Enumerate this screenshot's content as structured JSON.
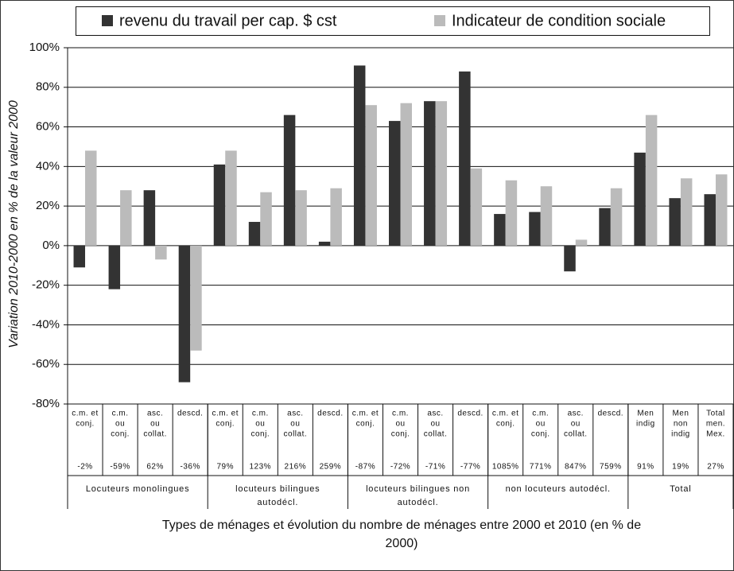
{
  "chart_data": {
    "type": "bar",
    "legend_position": "top",
    "y_axis_label": "Variation 2010-2000 en % de la valeur 2000",
    "x_axis_label": [
      "Types de ménages et évolution du nombre de ménages entre 2000 et 2010 (en % de",
      "2000)"
    ],
    "categories": [
      [
        "c.m. et",
        "conj."
      ],
      [
        "c.m.",
        "ou",
        "conj."
      ],
      [
        "asc.",
        "ou",
        "collat."
      ],
      [
        "descd."
      ],
      [
        "c.m. et",
        "conj."
      ],
      [
        "c.m.",
        "ou",
        "conj."
      ],
      [
        "asc.",
        "ou",
        "collat."
      ],
      [
        "descd."
      ],
      [
        "c.m. et",
        "conj."
      ],
      [
        "c.m.",
        "ou",
        "conj."
      ],
      [
        "asc.",
        "ou",
        "collat."
      ],
      [
        "descd."
      ],
      [
        "c.m. et",
        "conj."
      ],
      [
        "c.m.",
        "ou",
        "conj."
      ],
      [
        "asc.",
        "ou",
        "collat."
      ],
      [
        "descd."
      ],
      [
        "Men",
        "indig"
      ],
      [
        "Men",
        "non",
        "indig"
      ],
      [
        "Total",
        "men.",
        "Mex."
      ]
    ],
    "growth_labels": [
      "-2%",
      "-59%",
      "62%",
      "-36%",
      "79%",
      "123%",
      "216%",
      "259%",
      "-87%",
      "-72%",
      "-71%",
      "-77%",
      "1085%",
      "771%",
      "847%",
      "759%",
      "91%",
      "19%",
      "27%"
    ],
    "groups": [
      {
        "name": [
          "Locuteurs monolingues"
        ],
        "count": 4
      },
      {
        "name": [
          "locuteurs bilingues",
          "autodécl."
        ],
        "count": 4
      },
      {
        "name": [
          "locuteurs bilingues non",
          "autodécl."
        ],
        "count": 4
      },
      {
        "name": [
          "non locuteurs autodécl."
        ],
        "count": 4
      },
      {
        "name": [
          "Total"
        ],
        "count": 3
      }
    ],
    "series": [
      {
        "name": "revenu du travail per cap. $ cst",
        "color": "#333333",
        "values": [
          -11,
          -22,
          28,
          -69,
          41,
          12,
          66,
          2,
          91,
          63,
          73,
          88,
          16,
          17,
          -13,
          19,
          47,
          24,
          26
        ]
      },
      {
        "name": "Indicateur de condition sociale",
        "color": "#bbbbbb",
        "values": [
          48,
          28,
          -7,
          -53,
          48,
          27,
          28,
          29,
          71,
          72,
          73,
          39,
          33,
          30,
          3,
          29,
          66,
          34,
          36
        ]
      }
    ],
    "ylim": [
      -80,
      100
    ],
    "yticks": [
      {
        "value": -80,
        "label": "-80%"
      },
      {
        "value": -60,
        "label": "-60%"
      },
      {
        "value": -40,
        "label": "-40%"
      },
      {
        "value": -20,
        "label": "-20%"
      },
      {
        "value": 0,
        "label": "0%"
      },
      {
        "value": 20,
        "label": "20%"
      },
      {
        "value": 40,
        "label": "40%"
      },
      {
        "value": 60,
        "label": "60%"
      },
      {
        "value": 80,
        "label": "80%"
      },
      {
        "value": 100,
        "label": "100%"
      }
    ],
    "grid": true
  }
}
